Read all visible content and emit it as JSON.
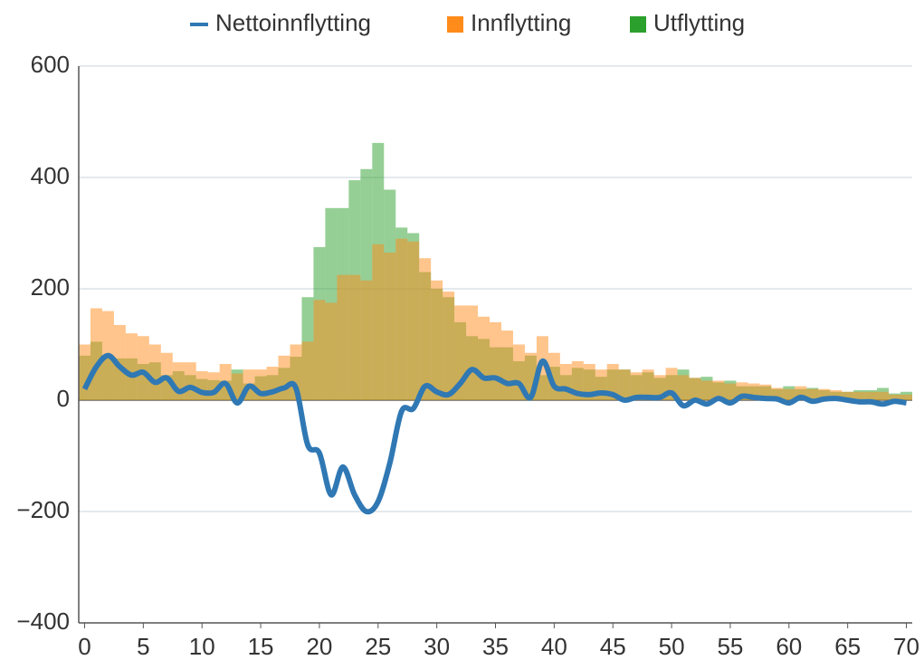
{
  "chart_data": {
    "type": "bar-line",
    "x": [
      0,
      1,
      2,
      3,
      4,
      5,
      6,
      7,
      8,
      9,
      10,
      11,
      12,
      13,
      14,
      15,
      16,
      17,
      18,
      19,
      20,
      21,
      22,
      23,
      24,
      25,
      26,
      27,
      28,
      29,
      30,
      31,
      32,
      33,
      34,
      35,
      36,
      37,
      38,
      39,
      40,
      41,
      42,
      43,
      44,
      45,
      46,
      47,
      48,
      49,
      50,
      51,
      52,
      53,
      54,
      55,
      56,
      57,
      58,
      59,
      60,
      61,
      62,
      63,
      64,
      65,
      66,
      67,
      68,
      69,
      70
    ],
    "series": [
      {
        "name": "Nettoinnflytting",
        "kind": "line",
        "color": "#2f78b4",
        "values": [
          20,
          60,
          80,
          60,
          45,
          50,
          32,
          40,
          16,
          23,
          14,
          14,
          30,
          -5,
          25,
          12,
          15,
          22,
          22,
          -80,
          -95,
          -170,
          -120,
          -170,
          -200,
          -182,
          -113,
          -20,
          -15,
          25,
          15,
          10,
          30,
          55,
          40,
          40,
          30,
          30,
          5,
          70,
          25,
          20,
          12,
          10,
          13,
          10,
          0,
          5,
          5,
          5,
          13,
          -10,
          0,
          -7,
          3,
          -5,
          7,
          5,
          3,
          2,
          -5,
          5,
          -2,
          2,
          3,
          0,
          -3,
          -3,
          -7,
          -2,
          -5
        ]
      },
      {
        "name": "Innflytting",
        "kind": "bar",
        "color": "#ff8c1a",
        "values": [
          100,
          165,
          160,
          135,
          120,
          115,
          100,
          85,
          68,
          68,
          52,
          50,
          65,
          48,
          55,
          55,
          60,
          80,
          100,
          105,
          180,
          175,
          225,
          225,
          215,
          280,
          265,
          290,
          285,
          255,
          215,
          195,
          170,
          170,
          150,
          140,
          125,
          100,
          85,
          115,
          85,
          65,
          70,
          65,
          55,
          65,
          55,
          50,
          55,
          45,
          58,
          45,
          40,
          35,
          35,
          30,
          32,
          30,
          28,
          22,
          20,
          25,
          20,
          20,
          18,
          15,
          15,
          15,
          15,
          10,
          10
        ]
      },
      {
        "name": "Utflytting",
        "kind": "bar",
        "color": "#2ca02c",
        "values": [
          80,
          105,
          80,
          75,
          75,
          65,
          68,
          45,
          52,
          45,
          38,
          36,
          35,
          55,
          30,
          43,
          45,
          58,
          78,
          185,
          275,
          345,
          345,
          395,
          415,
          462,
          378,
          310,
          300,
          230,
          200,
          185,
          140,
          115,
          110,
          95,
          95,
          70,
          80,
          45,
          60,
          45,
          58,
          55,
          42,
          55,
          55,
          45,
          50,
          40,
          45,
          55,
          40,
          42,
          32,
          35,
          25,
          25,
          25,
          20,
          25,
          20,
          22,
          18,
          15,
          15,
          18,
          18,
          22,
          12,
          15
        ]
      }
    ],
    "xlim": [
      -0.5,
      70.5
    ],
    "xticks": [
      0,
      5,
      10,
      15,
      20,
      25,
      30,
      35,
      40,
      45,
      50,
      55,
      60,
      65,
      70
    ],
    "ylim": [
      -400,
      600
    ],
    "yticks": [
      {
        "value": -400,
        "label": "−400"
      },
      {
        "value": -200,
        "label": "−200"
      },
      0,
      200,
      400,
      600
    ],
    "grid": true,
    "legend": "top"
  }
}
